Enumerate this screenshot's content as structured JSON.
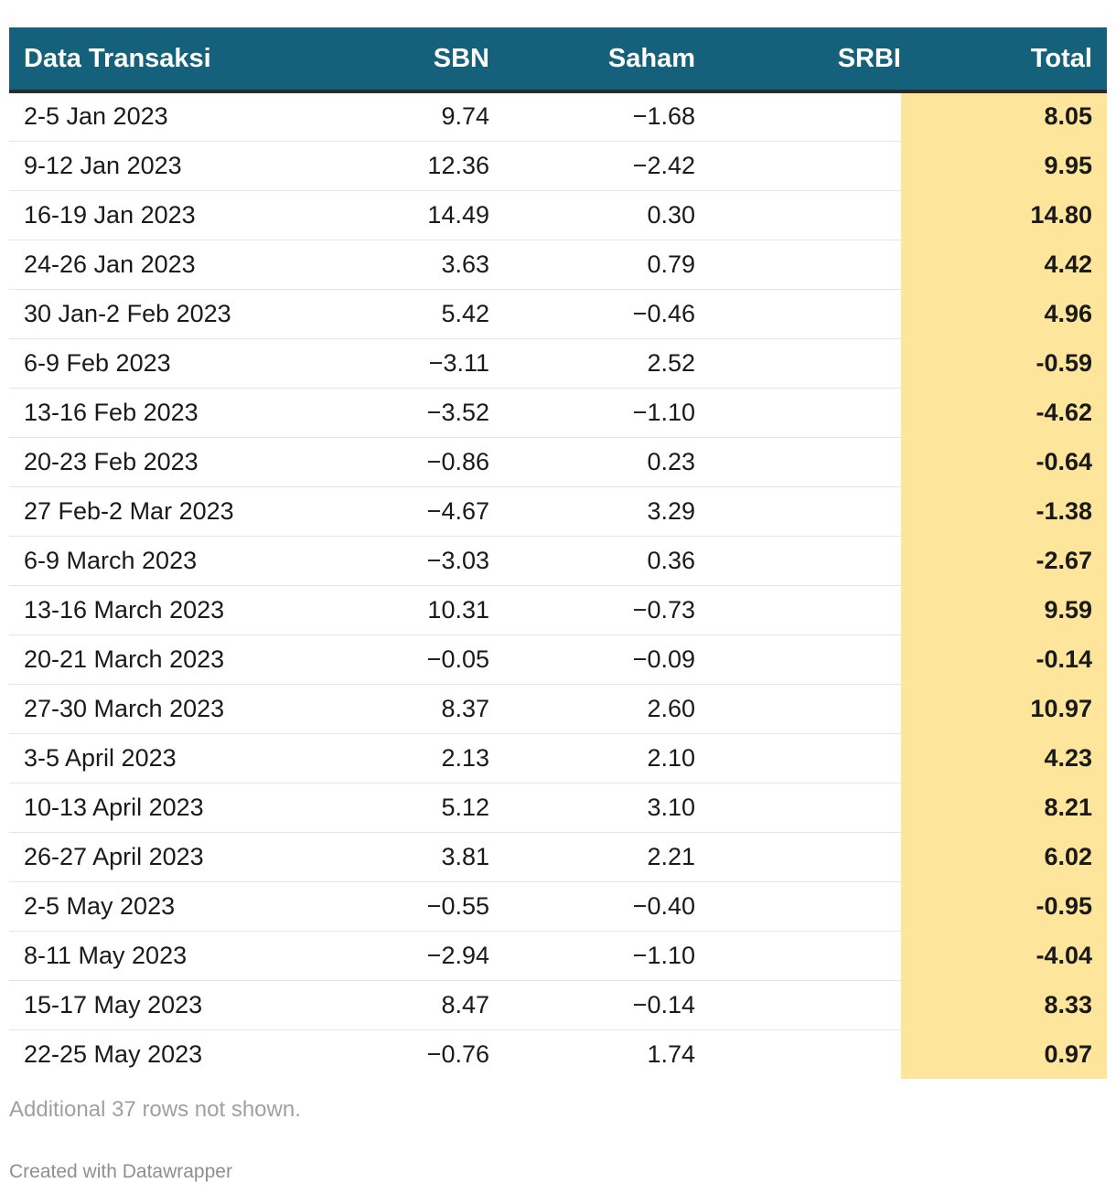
{
  "chart_data": {
    "type": "table",
    "columns": [
      "Data Transaksi",
      "SBN",
      "Saham",
      "SRBI",
      "Total"
    ],
    "rows": [
      [
        "2-5 Jan 2023",
        "9.74",
        "−1.68",
        "",
        "8.05"
      ],
      [
        "9-12 Jan 2023",
        "12.36",
        "−2.42",
        "",
        "9.95"
      ],
      [
        "16-19 Jan 2023",
        "14.49",
        "0.30",
        "",
        "14.80"
      ],
      [
        "24-26 Jan 2023",
        "3.63",
        "0.79",
        "",
        "4.42"
      ],
      [
        "30 Jan-2 Feb 2023",
        "5.42",
        "−0.46",
        "",
        "4.96"
      ],
      [
        "6-9 Feb 2023",
        "−3.11",
        "2.52",
        "",
        "-0.59"
      ],
      [
        "13-16 Feb 2023",
        "−3.52",
        "−1.10",
        "",
        "-4.62"
      ],
      [
        "20-23 Feb 2023",
        "−0.86",
        "0.23",
        "",
        "-0.64"
      ],
      [
        "27 Feb-2 Mar 2023",
        "−4.67",
        "3.29",
        "",
        "-1.38"
      ],
      [
        "6-9 March 2023",
        "−3.03",
        "0.36",
        "",
        "-2.67"
      ],
      [
        "13-16 March 2023",
        "10.31",
        "−0.73",
        "",
        "9.59"
      ],
      [
        "20-21 March 2023",
        "−0.05",
        "−0.09",
        "",
        "-0.14"
      ],
      [
        "27-30 March 2023",
        "8.37",
        "2.60",
        "",
        "10.97"
      ],
      [
        "3-5 April 2023",
        "2.13",
        "2.10",
        "",
        "4.23"
      ],
      [
        "10-13 April 2023",
        "5.12",
        "3.10",
        "",
        "8.21"
      ],
      [
        "26-27 April 2023",
        "3.81",
        "2.21",
        "",
        "6.02"
      ],
      [
        "2-5 May 2023",
        "−0.55",
        "−0.40",
        "",
        "-0.95"
      ],
      [
        "8-11 May 2023",
        "−2.94",
        "−1.10",
        "",
        "-4.04"
      ],
      [
        "15-17 May 2023",
        "8.47",
        "−0.14",
        "",
        "8.33"
      ],
      [
        "22-25 May 2023",
        "−0.76",
        "1.74",
        "",
        "0.97"
      ]
    ],
    "highlight_column": "Total",
    "header_color": "#15607a",
    "highlight_color": "#fde59c"
  },
  "footer": {
    "note": "Additional 37 rows not shown.",
    "credit": "Created with Datawrapper"
  }
}
